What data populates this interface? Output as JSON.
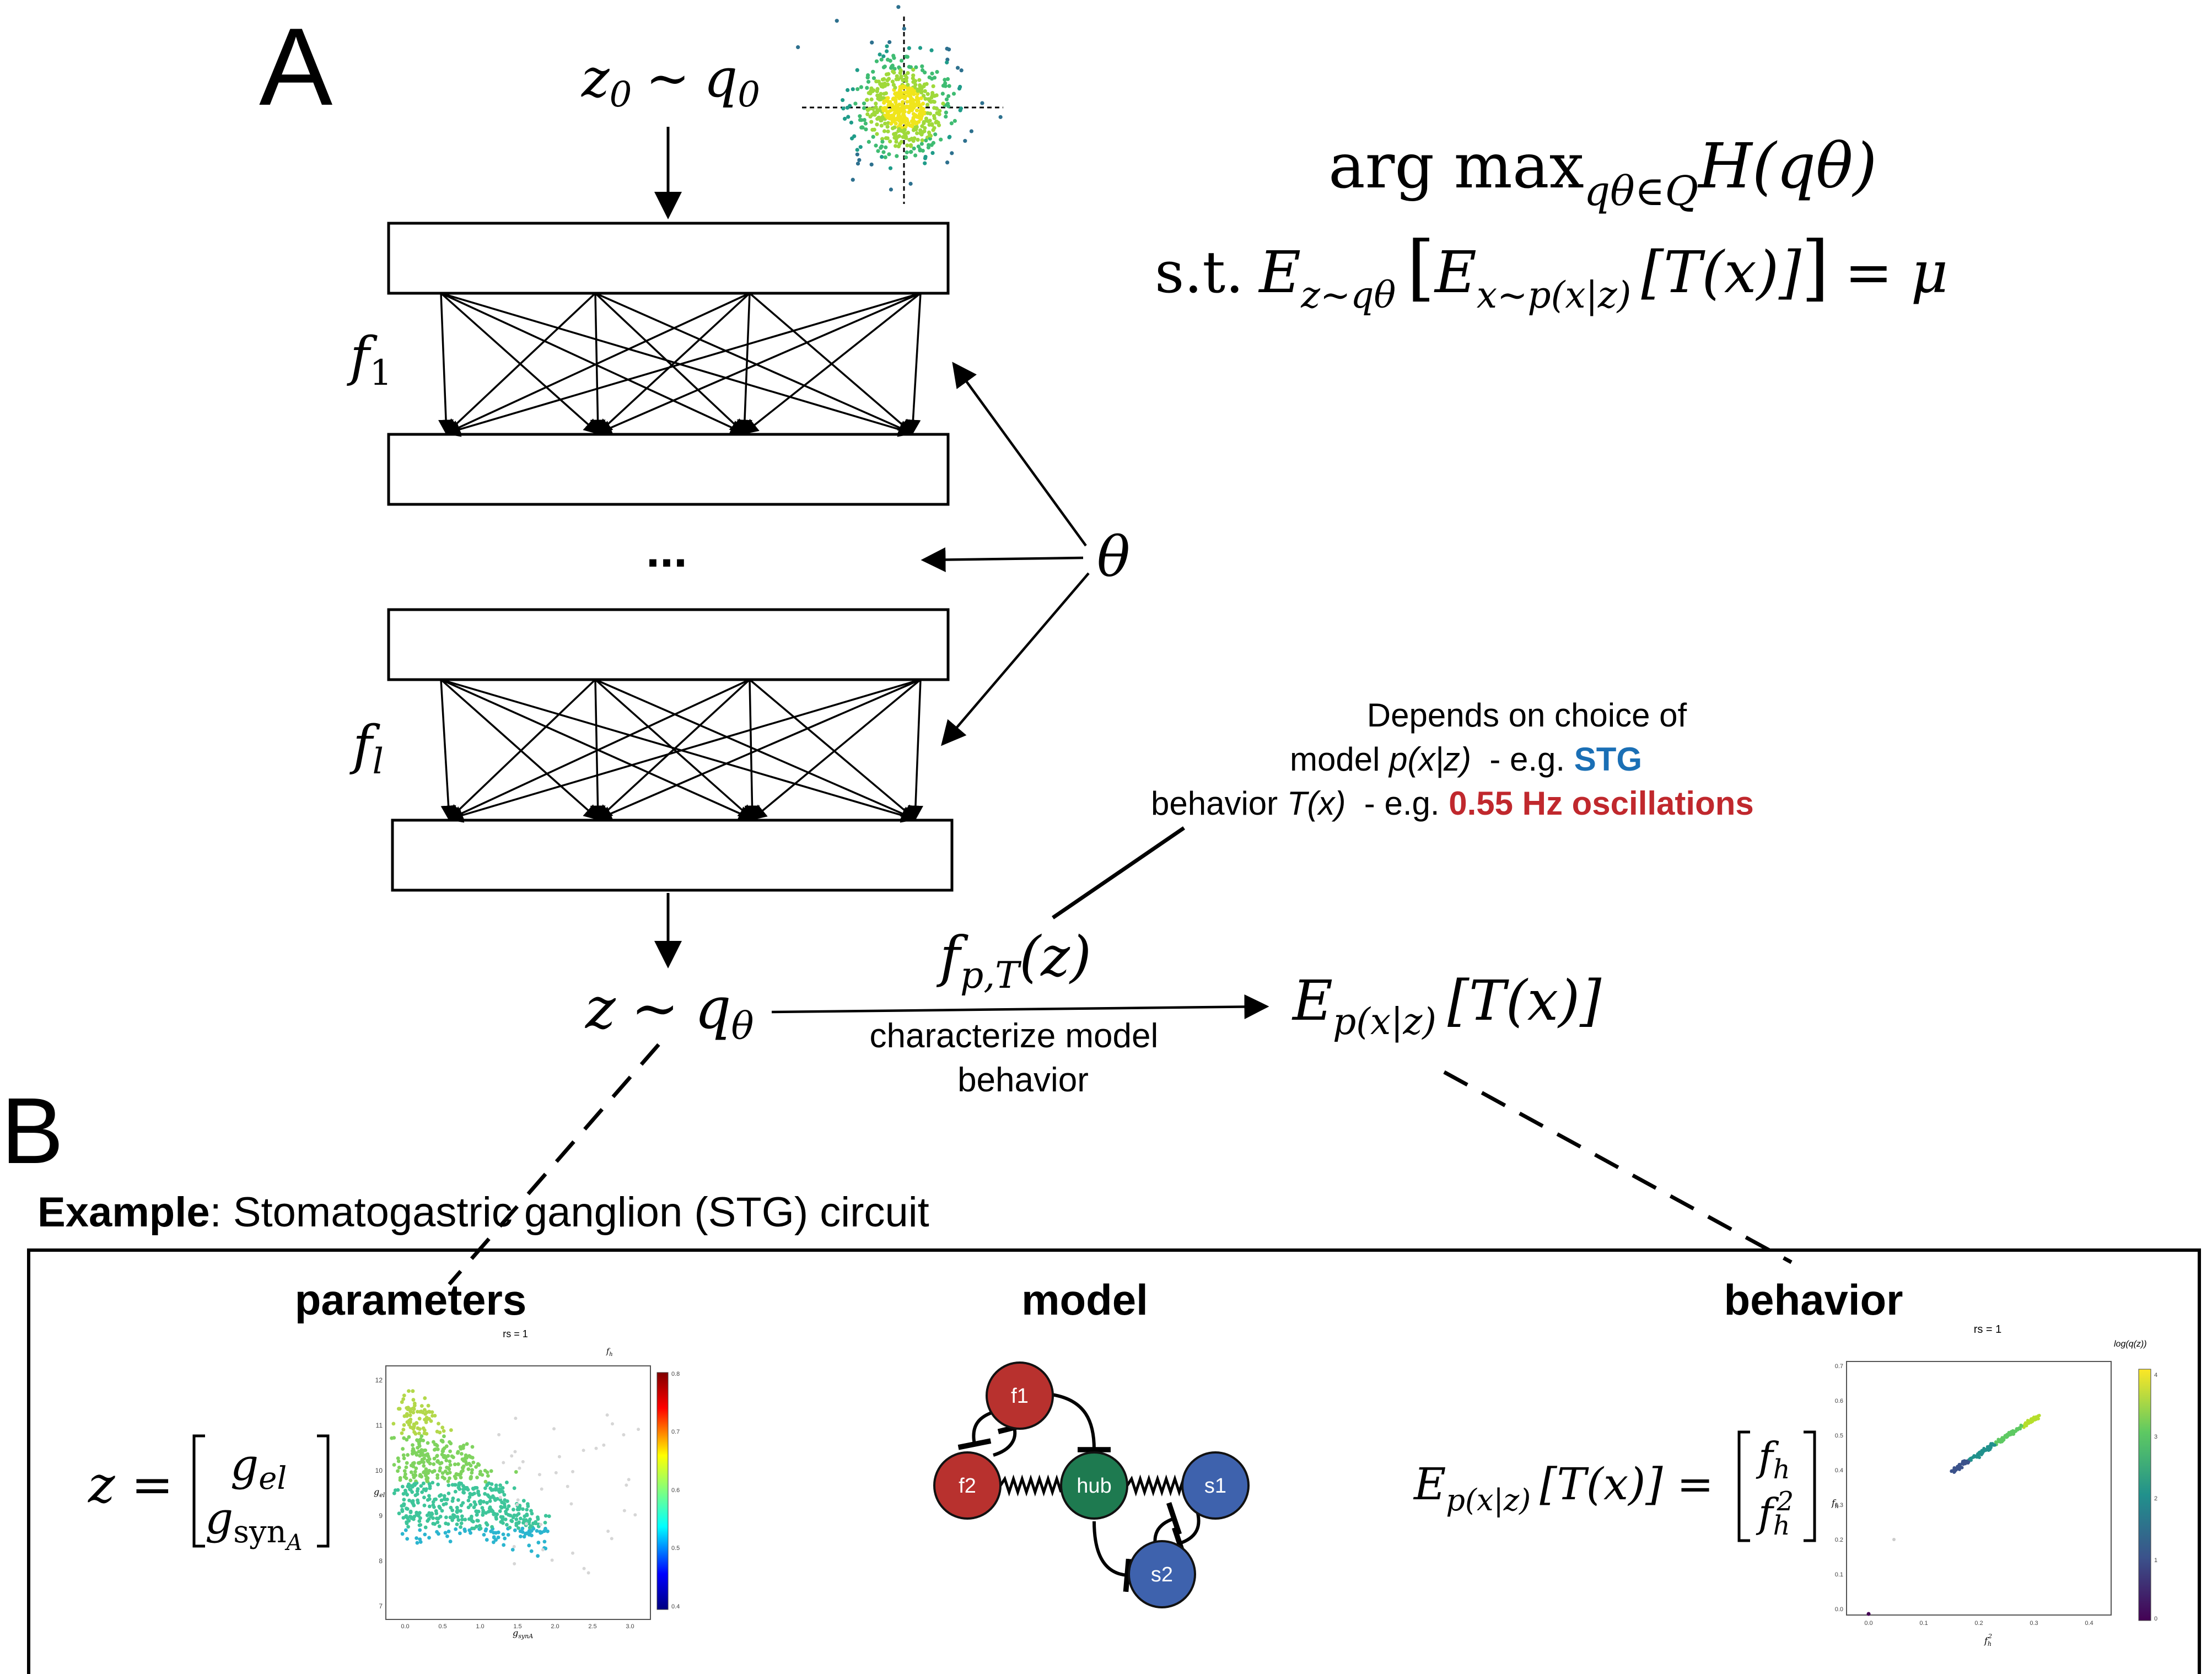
{
  "panel_a": {
    "letter": "A",
    "input": {
      "z": "z",
      "sub": "0",
      "sim": "∼",
      "q": "q",
      "qsub": "0"
    },
    "layer_first": {
      "f": "f",
      "sub": "1"
    },
    "layer_last": {
      "f": "f",
      "sub": "l"
    },
    "ellipsis": "...",
    "theta": "θ",
    "objective": {
      "line1_text": "arg max",
      "line1_sub": "qθ∈Q",
      "line1_tail": "H(qθ)",
      "line2_prefix": "s.t.",
      "line2_e_outer": "E",
      "line2_e_outer_sub": "z∼qθ",
      "line2_bracket_open": "[",
      "line2_e_inner": "E",
      "line2_e_inner_sub": "x∼p(x|z)",
      "line2_tail": "[T(x)]",
      "line2_bracket_close": "]",
      "line2_eq": "= μ"
    },
    "output": {
      "z": "z",
      "sim": "∼",
      "q": "q",
      "qsub": "θ"
    },
    "arrow_label": {
      "f": "f",
      "sub": "p,T",
      "arg": "(z)"
    },
    "arrow_caption": [
      "characterize model",
      "behavior"
    ],
    "target": {
      "e": "E",
      "sub": "p(x|z)",
      "tail": "[T(x)]"
    },
    "note": {
      "line1": "Depends on choice of",
      "line2_a": "model ",
      "line2_b": "p(x|z)",
      "line2_c": "  - e.g. ",
      "line2_d": "STG",
      "line3_a": "behavior ",
      "line3_b": "T(x)",
      "line3_c": "  - e.g. ",
      "line3_d": "0.55 Hz oscillations"
    }
  },
  "panel_b": {
    "letter": "B",
    "example_bold": "Example",
    "example_rest": ": Stomatogastric ganglion (STG) circuit",
    "headings": {
      "parameters": "parameters",
      "model": "model",
      "behavior": "behavior"
    },
    "param_eq": {
      "lhs": "z =",
      "row1": "g",
      "row1_sub": "el",
      "row2": "g",
      "row2_sub": "syn",
      "row2_subsub": "A"
    },
    "behavior_eq": {
      "e": "E",
      "sub": "p(x|z)",
      "tail": "[T(x)] =",
      "row1": "f",
      "row1_sub": "h",
      "row2": "f",
      "row2_sub": "h",
      "row2_sup": "2"
    },
    "circuit": {
      "nodes": [
        {
          "id": "f1",
          "label": "f1",
          "color": "#b8312e"
        },
        {
          "id": "f2",
          "label": "f2",
          "color": "#b8312e"
        },
        {
          "id": "hub",
          "label": "hub",
          "color": "#1e7a50"
        },
        {
          "id": "s1",
          "label": "s1",
          "color": "#3e62ad"
        },
        {
          "id": "s2",
          "label": "s2",
          "color": "#3e62ad"
        }
      ]
    },
    "param_plot": {
      "title": "rs = 1",
      "colorbar_label": "f",
      "colorbar_label_sub": "h",
      "ylabel": "g",
      "ylabel_sub": "el",
      "xlabel": "g",
      "xlabel_sub": "synA",
      "yticks": [
        "12",
        "11",
        "10",
        "9",
        "8",
        "7"
      ],
      "xticks": [
        "0.0",
        "0.5",
        "1.0",
        "1.5",
        "2.0",
        "2.5",
        "3.0"
      ],
      "cbar_ticks": [
        "0.8",
        "0.7",
        "0.6",
        "0.5",
        "0.4"
      ]
    },
    "behavior_plot": {
      "title": "rs = 1",
      "colorbar_label": "log(q(z))",
      "ylabel": "f",
      "ylabel_sub": "h",
      "xlabel": "f",
      "xlabel_sub": "h",
      "xlabel_sup": "2",
      "yticks": [
        "0.7",
        "0.6",
        "0.5",
        "0.4",
        "0.3",
        "0.2",
        "0.1",
        "0.0"
      ],
      "xticks": [
        "0.0",
        "0.1",
        "0.2",
        "0.3",
        "0.4"
      ],
      "cbar_ticks": [
        "4",
        "3",
        "2",
        "1",
        "0"
      ]
    }
  },
  "colors": {
    "stg_blue": "#1a6fb5",
    "oscillation_red": "#c0282d",
    "line": "#000000"
  }
}
